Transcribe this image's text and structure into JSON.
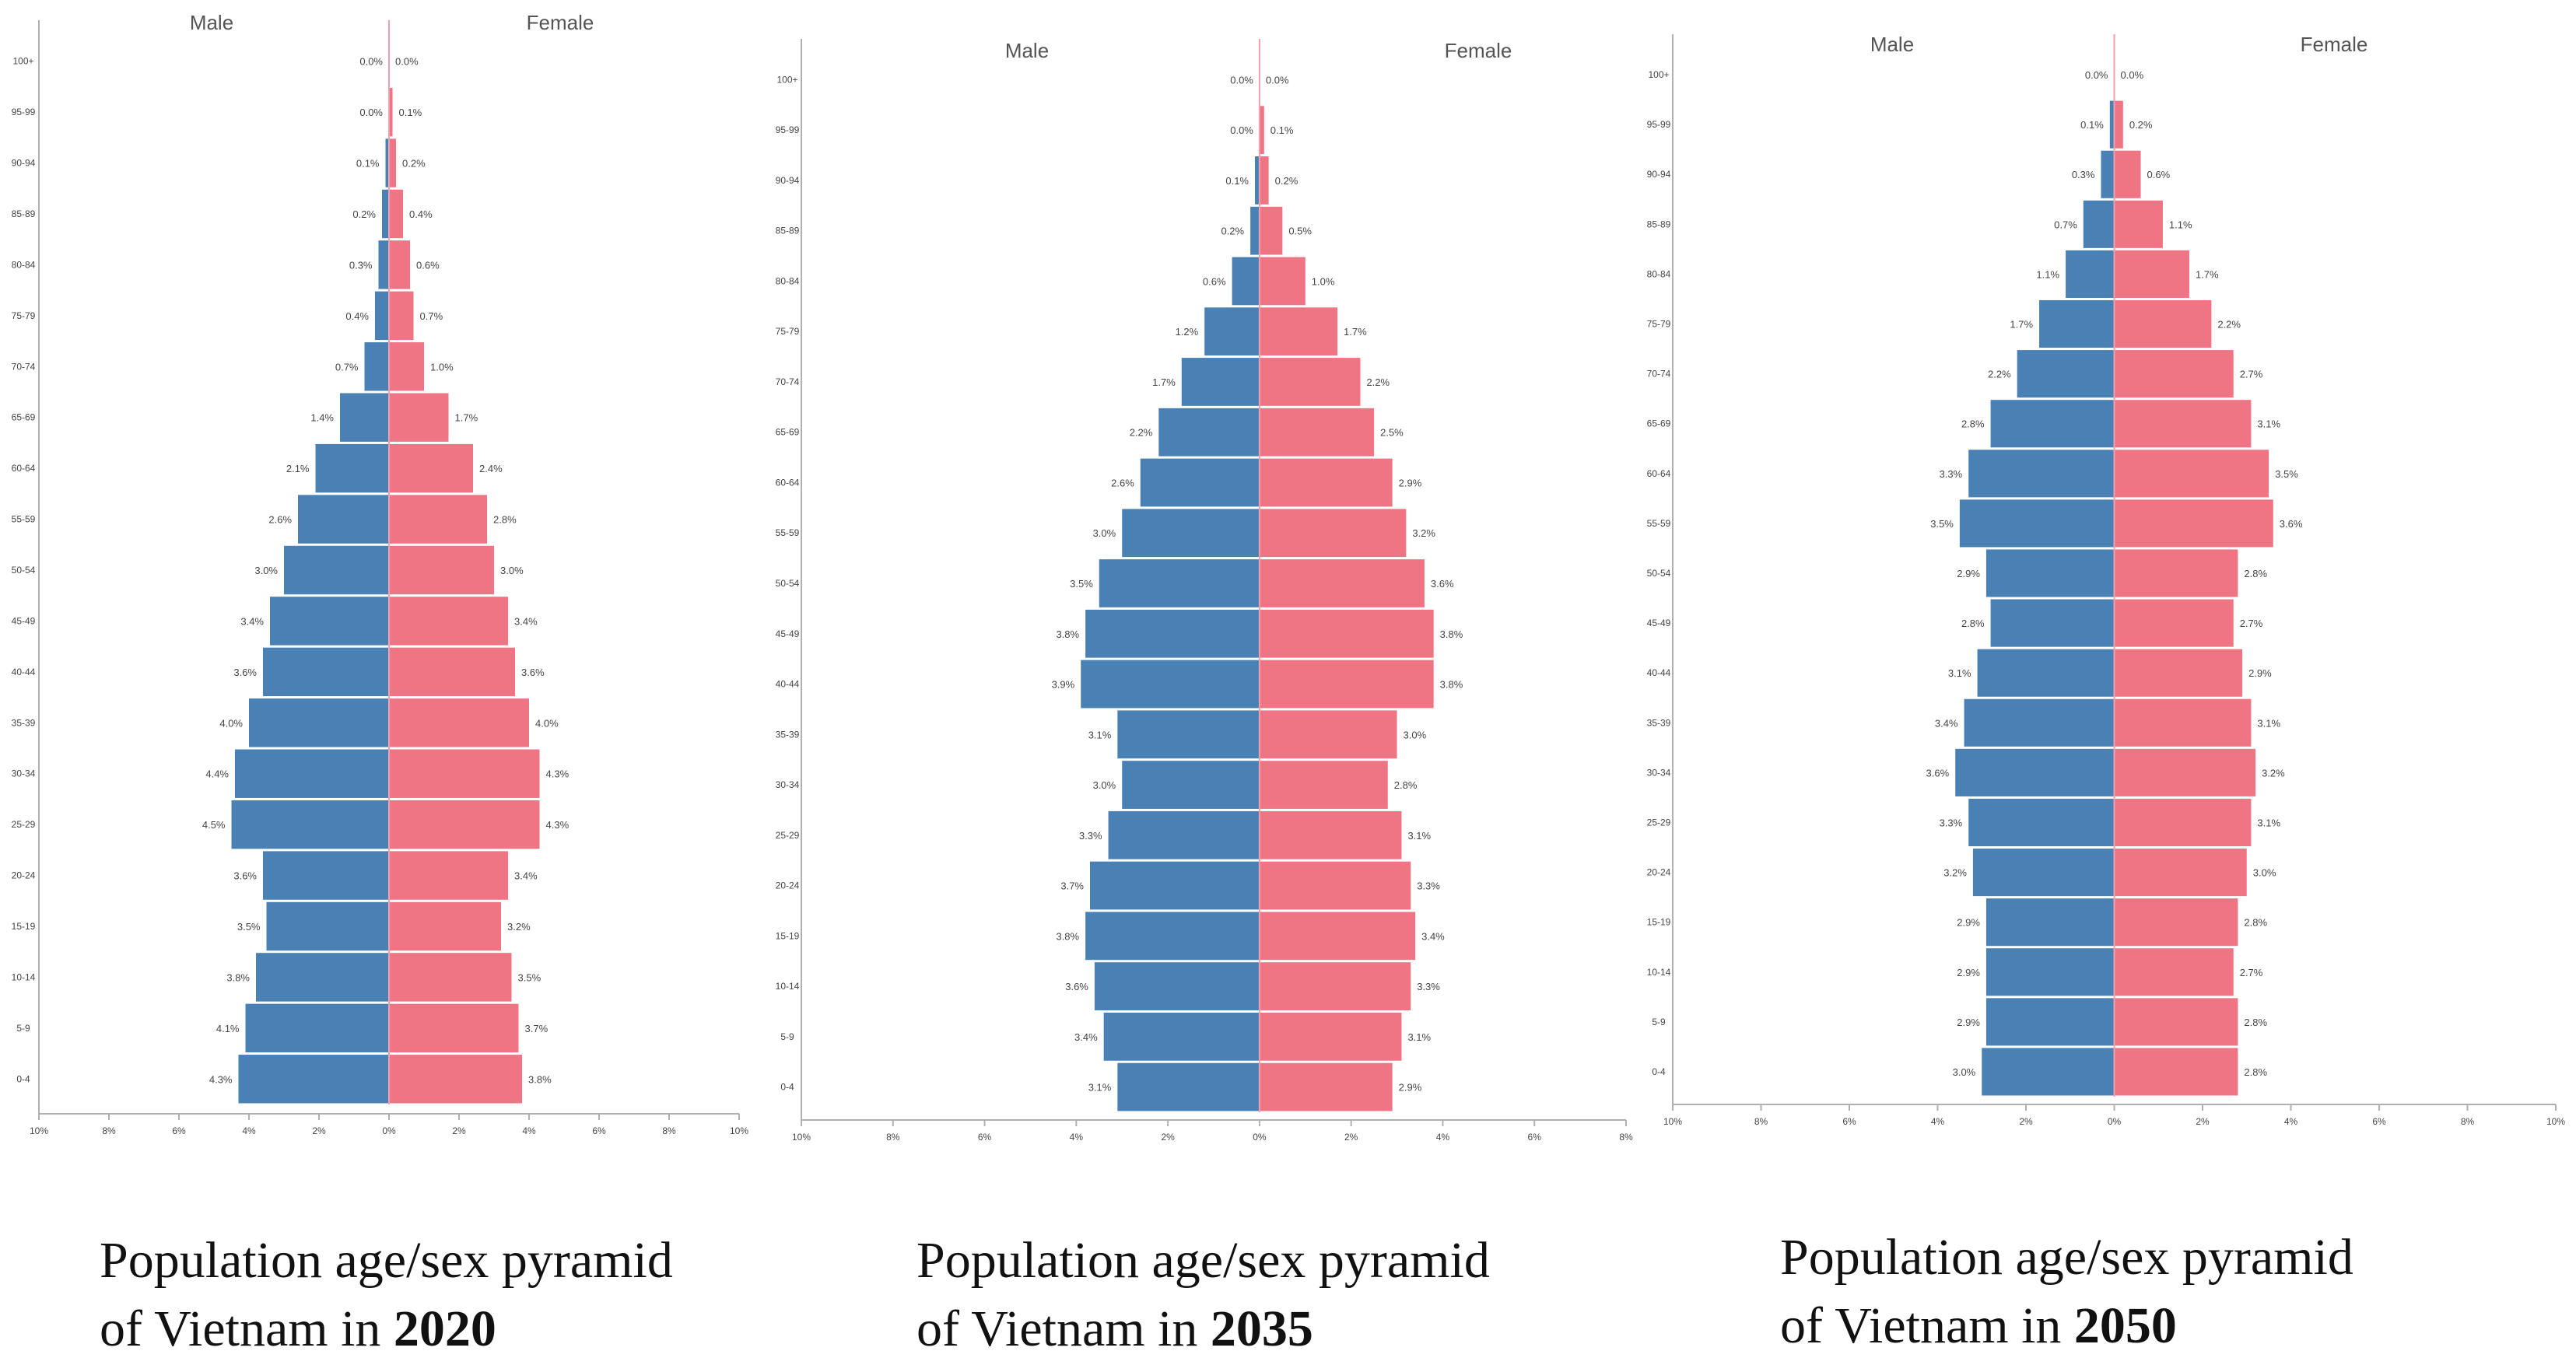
{
  "colors": {
    "male": "#4a81b5",
    "female": "#ef7585",
    "axis": "#b0b0b0",
    "center": "#f2a0b0"
  },
  "chart_data": [
    {
      "type": "bar",
      "orientation": "horizontal-pyramid",
      "year": "2020",
      "caption_line1": "Population age/sex pyramid",
      "caption_line2": "of Vietnam in ",
      "male_label": "Male",
      "female_label": "Female",
      "categories": [
        "100+",
        "95-99",
        "90-94",
        "85-89",
        "80-84",
        "75-79",
        "70-74",
        "65-69",
        "60-64",
        "55-59",
        "50-54",
        "45-49",
        "40-44",
        "35-39",
        "30-34",
        "25-29",
        "20-24",
        "15-19",
        "10-14",
        "5-9",
        "0-4"
      ],
      "series": [
        {
          "name": "Male",
          "values": [
            0.0,
            0.0,
            0.1,
            0.2,
            0.3,
            0.4,
            0.7,
            1.4,
            2.1,
            2.6,
            3.0,
            3.4,
            3.6,
            4.0,
            4.4,
            4.5,
            3.6,
            3.5,
            3.8,
            4.1,
            4.3
          ],
          "labels": [
            "0.0%",
            "0.0%",
            "0.1%",
            "0.2%",
            "0.3%",
            "0.4%",
            "0.7%",
            "1.4%",
            "2.1%",
            "2.6%",
            "3.0%",
            "3.4%",
            "3.6%",
            "4.0%",
            "4.4%",
            "4.5%",
            "3.6%",
            "3.5%",
            "3.8%",
            "4.1%",
            "4.3%"
          ]
        },
        {
          "name": "Female",
          "values": [
            0.0,
            0.1,
            0.2,
            0.4,
            0.6,
            0.7,
            1.0,
            1.7,
            2.4,
            2.8,
            3.0,
            3.4,
            3.6,
            4.0,
            4.3,
            4.3,
            3.4,
            3.2,
            3.5,
            3.7,
            3.8
          ],
          "labels": [
            "0.0%",
            "0.1%",
            "0.2%",
            "0.4%",
            "0.6%",
            "0.7%",
            "1.0%",
            "1.7%",
            "2.4%",
            "2.8%",
            "3.0%",
            "3.4%",
            "3.6%",
            "4.0%",
            "4.3%",
            "4.3%",
            "3.4%",
            "3.2%",
            "3.5%",
            "3.7%",
            "3.8%"
          ]
        }
      ],
      "xlim": [
        -10,
        10
      ],
      "xticks": [
        "10%",
        "8%",
        "6%",
        "4%",
        "2%",
        "0%",
        "2%",
        "4%",
        "6%",
        "8%",
        "10%"
      ]
    },
    {
      "type": "bar",
      "orientation": "horizontal-pyramid",
      "year": "2035",
      "caption_line1": "Population age/sex pyramid",
      "caption_line2": "of Vietnam in ",
      "male_label": "Male",
      "female_label": "Female",
      "categories": [
        "100+",
        "95-99",
        "90-94",
        "85-89",
        "80-84",
        "75-79",
        "70-74",
        "65-69",
        "60-64",
        "55-59",
        "50-54",
        "45-49",
        "40-44",
        "35-39",
        "30-34",
        "25-29",
        "20-24",
        "15-19",
        "10-14",
        "5-9",
        "0-4"
      ],
      "series": [
        {
          "name": "Male",
          "values": [
            0.0,
            0.0,
            0.1,
            0.2,
            0.6,
            1.2,
            1.7,
            2.2,
            2.6,
            3.0,
            3.5,
            3.8,
            3.9,
            3.1,
            3.0,
            3.3,
            3.7,
            3.8,
            3.6,
            3.4,
            3.1
          ],
          "labels": [
            "0.0%",
            "0.0%",
            "0.1%",
            "0.2%",
            "0.6%",
            "1.2%",
            "1.7%",
            "2.2%",
            "2.6%",
            "3.0%",
            "3.5%",
            "3.8%",
            "3.9%",
            "3.1%",
            "3.0%",
            "3.3%",
            "3.7%",
            "3.8%",
            "3.6%",
            "3.4%",
            "3.1%"
          ]
        },
        {
          "name": "Female",
          "values": [
            0.0,
            0.1,
            0.2,
            0.5,
            1.0,
            1.7,
            2.2,
            2.5,
            2.9,
            3.2,
            3.6,
            3.8,
            3.8,
            3.0,
            2.8,
            3.1,
            3.3,
            3.4,
            3.3,
            3.1,
            2.9
          ],
          "labels": [
            "0.0%",
            "0.1%",
            "0.2%",
            "0.5%",
            "1.0%",
            "1.7%",
            "2.2%",
            "2.5%",
            "2.9%",
            "3.2%",
            "3.6%",
            "3.8%",
            "3.8%",
            "3.0%",
            "2.8%",
            "3.1%",
            "3.3%",
            "3.4%",
            "3.3%",
            "3.1%",
            "2.9%"
          ]
        }
      ],
      "xlim": [
        -10,
        8
      ],
      "xticks": [
        "10%",
        "8%",
        "6%",
        "4%",
        "2%",
        "0%",
        "2%",
        "4%",
        "6%",
        "8%"
      ]
    },
    {
      "type": "bar",
      "orientation": "horizontal-pyramid",
      "year": "2050",
      "caption_line1": "Population age/sex pyramid",
      "caption_line2": "of Vietnam in ",
      "male_label": "Male",
      "female_label": "Female",
      "categories": [
        "100+",
        "95-99",
        "90-94",
        "85-89",
        "80-84",
        "75-79",
        "70-74",
        "65-69",
        "60-64",
        "55-59",
        "50-54",
        "45-49",
        "40-44",
        "35-39",
        "30-34",
        "25-29",
        "20-24",
        "15-19",
        "10-14",
        "5-9",
        "0-4"
      ],
      "series": [
        {
          "name": "Male",
          "values": [
            0.0,
            0.1,
            0.3,
            0.7,
            1.1,
            1.7,
            2.2,
            2.8,
            3.3,
            3.5,
            2.9,
            2.8,
            3.1,
            3.4,
            3.6,
            3.3,
            3.2,
            2.9,
            2.9,
            2.9,
            3.0
          ],
          "labels": [
            "0.0%",
            "0.1%",
            "0.3%",
            "0.7%",
            "1.1%",
            "1.7%",
            "2.2%",
            "2.8%",
            "3.3%",
            "3.5%",
            "2.9%",
            "2.8%",
            "3.1%",
            "3.4%",
            "3.6%",
            "3.3%",
            "3.2%",
            "2.9%",
            "2.9%",
            "2.9%",
            "3.0%"
          ]
        },
        {
          "name": "Female",
          "values": [
            0.0,
            0.2,
            0.6,
            1.1,
            1.7,
            2.2,
            2.7,
            3.1,
            3.5,
            3.6,
            2.8,
            2.7,
            2.9,
            3.1,
            3.2,
            3.1,
            3.0,
            2.8,
            2.7,
            2.8,
            2.8
          ],
          "labels": [
            "0.0%",
            "0.2%",
            "0.6%",
            "1.1%",
            "1.7%",
            "2.2%",
            "2.7%",
            "3.1%",
            "3.5%",
            "3.6%",
            "2.8%",
            "2.7%",
            "2.9%",
            "3.1%",
            "3.2%",
            "3.1%",
            "3.0%",
            "2.8%",
            "2.7%",
            "2.8%",
            "2.8%"
          ]
        }
      ],
      "xlim": [
        -10,
        10
      ],
      "xticks": [
        "10%",
        "8%",
        "6%",
        "4%",
        "2%",
        "0%",
        "2%",
        "4%",
        "6%",
        "8%",
        "10%"
      ]
    }
  ]
}
